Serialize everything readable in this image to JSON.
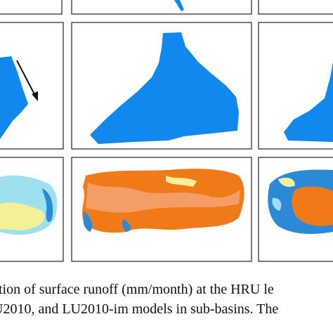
{
  "caption": {
    "lines": [
      "tion of surface runoff (mm/month) at the HRU le",
      "U2010, and LU2010-im models in sub-basins. The"
    ]
  }
}
